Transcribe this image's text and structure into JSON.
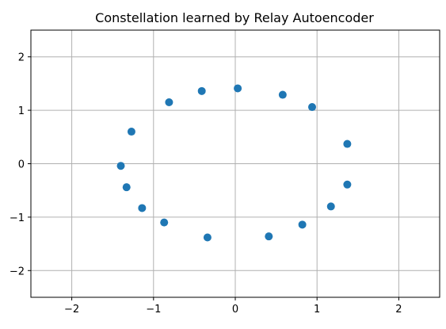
{
  "chart_data": {
    "type": "scatter",
    "title": "Constellation learned by Relay Autoencoder",
    "xlabel": "",
    "ylabel": "",
    "xlim": [
      -2.5,
      2.5
    ],
    "ylim": [
      -2.5,
      2.5
    ],
    "xticks": [
      -2,
      -1,
      0,
      1,
      2
    ],
    "yticks": [
      -2,
      -1,
      0,
      1,
      2
    ],
    "xtick_labels": [
      "−2",
      "−1",
      "0",
      "1",
      "2"
    ],
    "ytick_labels": [
      "−2",
      "−1",
      "0",
      "1",
      "2"
    ],
    "grid": true,
    "marker_color": "#1f77b4",
    "points": [
      {
        "x": 0.03,
        "y": 1.41
      },
      {
        "x": 0.58,
        "y": 1.29
      },
      {
        "x": 0.94,
        "y": 1.06
      },
      {
        "x": 1.37,
        "y": 0.37
      },
      {
        "x": 1.37,
        "y": -0.39
      },
      {
        "x": 1.17,
        "y": -0.8
      },
      {
        "x": 0.82,
        "y": -1.14
      },
      {
        "x": 0.41,
        "y": -1.36
      },
      {
        "x": -0.34,
        "y": -1.38
      },
      {
        "x": -0.87,
        "y": -1.1
      },
      {
        "x": -1.14,
        "y": -0.83
      },
      {
        "x": -1.33,
        "y": -0.44
      },
      {
        "x": -1.4,
        "y": -0.04
      },
      {
        "x": -1.27,
        "y": 0.6
      },
      {
        "x": -0.81,
        "y": 1.15
      },
      {
        "x": -0.41,
        "y": 1.36
      }
    ]
  }
}
